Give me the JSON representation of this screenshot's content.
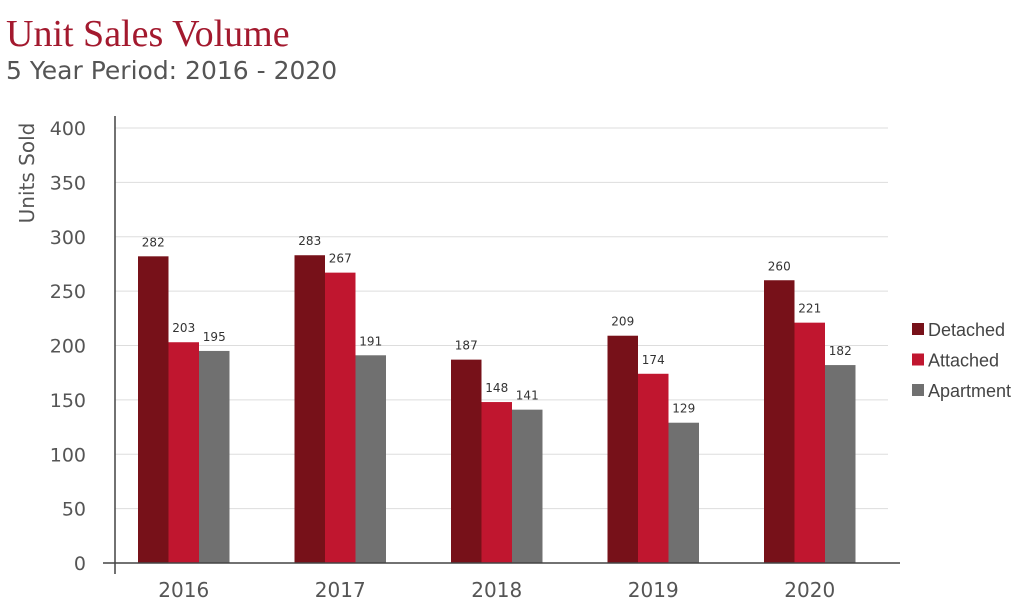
{
  "chart_data": {
    "type": "bar",
    "title": "Unit Sales Volume",
    "subtitle": "5 Year Period: 2016 - 2020",
    "xlabel": "",
    "ylabel": "Units Sold",
    "ylim": [
      0,
      400
    ],
    "yticks": [
      0,
      50,
      100,
      150,
      200,
      250,
      300,
      350,
      400
    ],
    "categories": [
      "2016",
      "2017",
      "2018",
      "2019",
      "2020"
    ],
    "series": [
      {
        "name": "Detached",
        "color": "#771119",
        "values": [
          282,
          283,
          187,
          209,
          260
        ]
      },
      {
        "name": "Attached",
        "color": "#c0162f",
        "values": [
          203,
          267,
          148,
          174,
          221
        ]
      },
      {
        "name": "Apartment",
        "color": "#707070",
        "values": [
          195,
          191,
          141,
          129,
          182
        ]
      }
    ],
    "grid": true,
    "legend": "right"
  }
}
